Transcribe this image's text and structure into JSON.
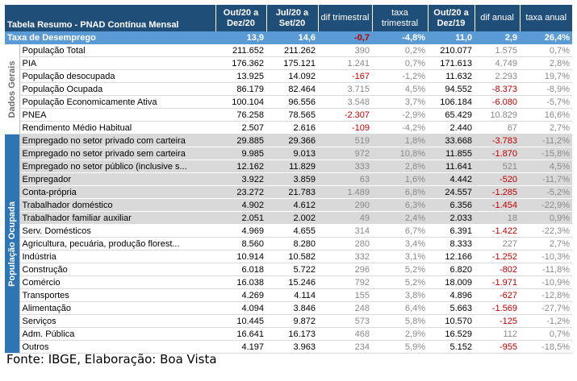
{
  "table": {
    "headers": {
      "title": "Tabela Resumo - PNAD Contínua Mensal",
      "c1": "Out/20 a Dez/20",
      "c2": "Jul/20 a Set/20",
      "c3": "dif trimestral",
      "c4": "taxa trimestral",
      "c5": "Out/20 a Dez/19",
      "c6": "dif anual",
      "c7": "taxa anual"
    },
    "highlight": [
      "Taxa de Desemprego",
      "13,9",
      "14,6",
      "-0,7",
      "-4,8%",
      "11,0",
      "2,9",
      "26,4%"
    ],
    "groups": {
      "gerais": "Dados Gerais",
      "ocupada": "População Ocupada"
    },
    "rows": [
      [
        "População Total",
        "211.652",
        "211.262",
        "390",
        "0,2%",
        "210.077",
        "1.575",
        "0,7%"
      ],
      [
        "PIA",
        "176.362",
        "175.121",
        "1.241",
        "0,7%",
        "171.613",
        "4.749",
        "2,8%"
      ],
      [
        "População desocupada",
        "13.925",
        "14.092",
        "-167",
        "-1,2%",
        "11.632",
        "2.293",
        "19,7%"
      ],
      [
        "População Ocupada",
        "86.179",
        "82.464",
        "3.715",
        "4,5%",
        "94.552",
        "-8.373",
        "-8,9%"
      ],
      [
        "População Economicamente Ativa",
        "100.104",
        "96.556",
        "3.548",
        "3,7%",
        "106.184",
        "-6.080",
        "-5,7%"
      ],
      [
        "PNEA",
        "76.258",
        "78.565",
        "-2.307",
        "-2,9%",
        "65.429",
        "10.829",
        "16,6%"
      ],
      [
        "Rendimento Médio Habitual",
        "2.507",
        "2.616",
        "-109",
        "-4,2%",
        "2.440",
        "67",
        "2,7%"
      ],
      [
        "Empregado no setor privado com carteira",
        "29.885",
        "29.366",
        "519",
        "1,8%",
        "33.668",
        "-3.783",
        "-11,2%"
      ],
      [
        "Empregado no setor privado sem carteira",
        "9.985",
        "9.013",
        "972",
        "10,8%",
        "11.855",
        "-1.870",
        "-15,8%"
      ],
      [
        "Empregado no setor público (inclusive s...",
        "12.162",
        "11.829",
        "333",
        "2,8%",
        "11.641",
        "521",
        "4,5%"
      ],
      [
        "Empregador",
        "3.922",
        "3.859",
        "63",
        "1,6%",
        "4.442",
        "-520",
        "-11,7%"
      ],
      [
        "Conta-própria",
        "23.272",
        "21.783",
        "1.489",
        "6,8%",
        "24.557",
        "-1.285",
        "-5,2%"
      ],
      [
        "Trabalhador doméstico",
        "4.902",
        "4.612",
        "290",
        "6,3%",
        "6.356",
        "-1.454",
        "-22,9%"
      ],
      [
        "Trabalhador familiar auxiliar",
        "2.051",
        "2.002",
        "49",
        "2,4%",
        "2.033",
        "18",
        "0,9%"
      ],
      [
        "Serv. Domésticos",
        "4.969",
        "4.655",
        "314",
        "6,7%",
        "6.391",
        "-1.422",
        "-22,3%"
      ],
      [
        "Agricultura, pecuária, produção florest...",
        "8.560",
        "8.280",
        "280",
        "3,4%",
        "8.333",
        "227",
        "2,7%"
      ],
      [
        "Indústria",
        "10.914",
        "10.582",
        "332",
        "3,1%",
        "12.166",
        "-1.252",
        "-10,3%"
      ],
      [
        "Construção",
        "6.018",
        "5.722",
        "296",
        "5,2%",
        "6.820",
        "-802",
        "-11,8%"
      ],
      [
        "Comércio",
        "16.038",
        "15.246",
        "792",
        "5,2%",
        "18.009",
        "-1.971",
        "-10,9%"
      ],
      [
        "Transportes",
        "4.269",
        "4.114",
        "155",
        "3,8%",
        "4.896",
        "-627",
        "-12,8%"
      ],
      [
        "Alimentação",
        "4.094",
        "3.846",
        "248",
        "6,4%",
        "5.663",
        "-1.569",
        "-27,7%"
      ],
      [
        "Serviços",
        "10.445",
        "9.872",
        "573",
        "5,8%",
        "10.570",
        "-125",
        "-1,2%"
      ],
      [
        "Adm. Pública",
        "16.641",
        "16.173",
        "468",
        "2,9%",
        "16.529",
        "112",
        "0,7%"
      ],
      [
        "Outros",
        "4.197",
        "3.963",
        "234",
        "5,9%",
        "5.152",
        "-955",
        "-18,5%"
      ]
    ]
  },
  "source": "Fonte: IBGE, Elaboração: Boa Vista",
  "colors": {
    "header_bg": "#1f4e79",
    "highlight_bg": "#5b9bd5",
    "group_bg": "#2e75b6",
    "shade_bg": "#d9d9d9",
    "negative": "#c00000"
  }
}
